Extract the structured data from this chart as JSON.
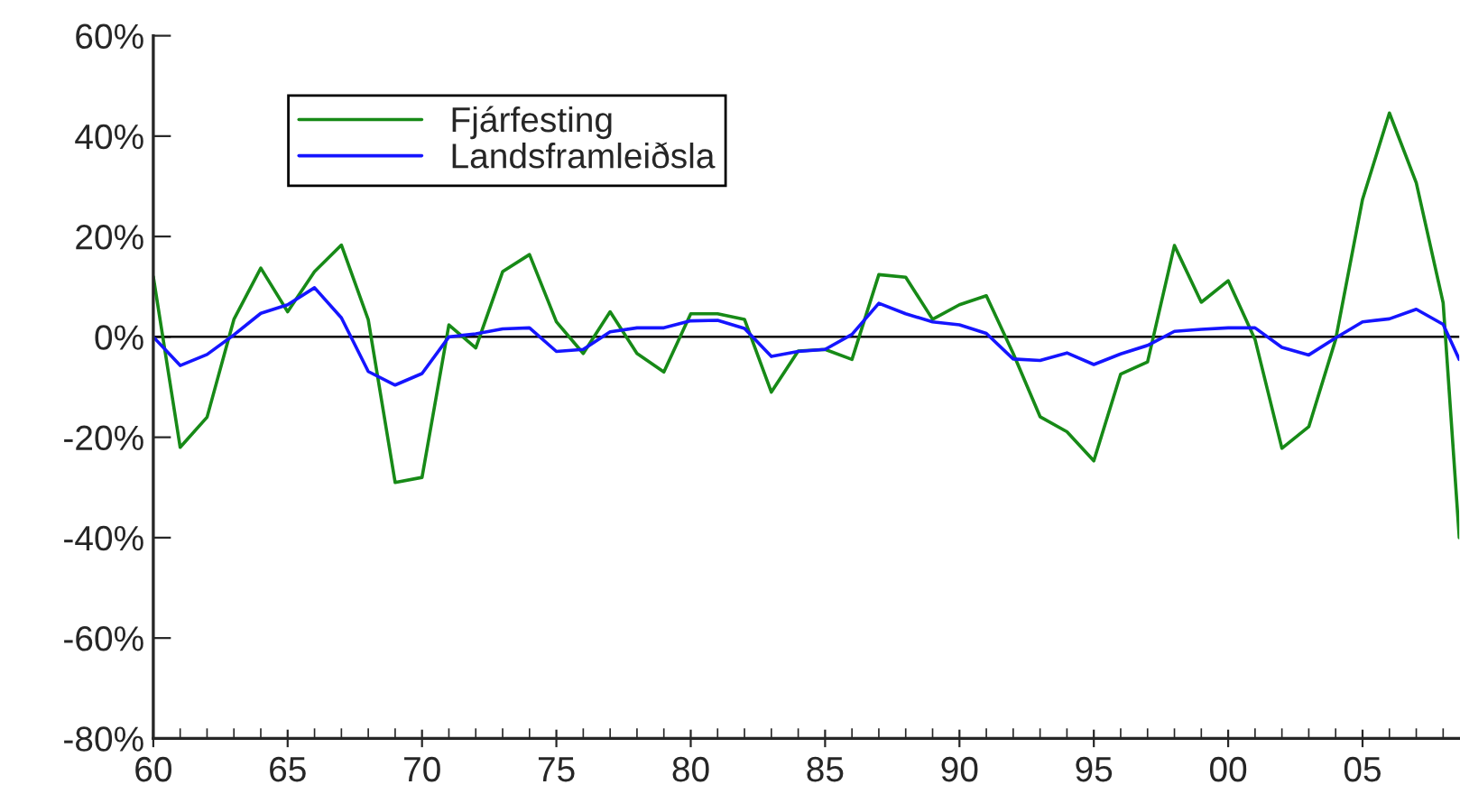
{
  "chart_data": {
    "type": "line",
    "x": [
      1960,
      1961,
      1962,
      1963,
      1964,
      1965,
      1966,
      1967,
      1968,
      1969,
      1970,
      1971,
      1972,
      1973,
      1974,
      1975,
      1976,
      1977,
      1978,
      1979,
      1980,
      1981,
      1982,
      1983,
      1984,
      1985,
      1986,
      1987,
      1988,
      1989,
      1990,
      1991,
      1992,
      1993,
      1994,
      1995,
      1996,
      1997,
      1998,
      1999,
      2000,
      2001,
      2002,
      2003,
      2004,
      2005,
      2006,
      2007,
      2008,
      2008.6
    ],
    "series": [
      {
        "name": "Fjárfesting",
        "color": "#178a17",
        "values": [
          12,
          -22,
          -16,
          3.5,
          13.7,
          5,
          13,
          18.3,
          3.4,
          -29,
          -28,
          2.4,
          -2.2,
          13,
          16.4,
          3,
          -3.3,
          5,
          -3.3,
          -7,
          4.6,
          4.6,
          3.5,
          -11,
          -2.8,
          -2.5,
          -4.5,
          12.4,
          11.9,
          3.5,
          6.4,
          8.2,
          -3.3,
          -15.9,
          -18.9,
          -24.7,
          -7.4,
          -5,
          18.2,
          6.9,
          11.2,
          -0.5,
          -22.2,
          -17.9,
          -0.5,
          27.4,
          44.6,
          30.7,
          6.8,
          -40
        ]
      },
      {
        "name": "Landsframleiðsla",
        "color": "#1515ff",
        "values": [
          0,
          -5.7,
          -3.5,
          0.4,
          4.7,
          6.4,
          9.8,
          3.8,
          -6.9,
          -9.6,
          -7.3,
          0,
          0.6,
          1.6,
          1.8,
          -2.9,
          -2.5,
          1,
          1.8,
          1.8,
          3.2,
          3.3,
          1.7,
          -3.9,
          -2.9,
          -2.5,
          0.5,
          6.7,
          4.6,
          3,
          2.4,
          0.7,
          -4.4,
          -4.7,
          -3.2,
          -5.5,
          -3.4,
          -1.7,
          1.1,
          1.5,
          1.8,
          1.8,
          -2.1,
          -3.6,
          -0.2,
          3,
          3.6,
          5.5,
          2.5,
          -4.5
        ]
      }
    ],
    "xlim": [
      1960,
      2008.6
    ],
    "xticks": [
      {
        "value": 1960,
        "label": "60"
      },
      {
        "value": 1965,
        "label": "65"
      },
      {
        "value": 1970,
        "label": "70"
      },
      {
        "value": 1975,
        "label": "75"
      },
      {
        "value": 1980,
        "label": "80"
      },
      {
        "value": 1985,
        "label": "85"
      },
      {
        "value": 1990,
        "label": "90"
      },
      {
        "value": 1995,
        "label": "95"
      },
      {
        "value": 2000,
        "label": "00"
      },
      {
        "value": 2005,
        "label": "05"
      }
    ],
    "ylim": [
      -80,
      60
    ],
    "yticks": [
      {
        "value": -80,
        "label": "-80%"
      },
      {
        "value": -60,
        "label": "-60%"
      },
      {
        "value": -40,
        "label": "-40%"
      },
      {
        "value": -20,
        "label": "-20%"
      },
      {
        "value": 0,
        "label": "0%"
      },
      {
        "value": 20,
        "label": "20%"
      },
      {
        "value": 40,
        "label": "40%"
      },
      {
        "value": 60,
        "label": "60%"
      }
    ],
    "ref_lines": [
      {
        "axis": "y",
        "value": 0,
        "color": "#000000",
        "line_style": "solid"
      }
    ],
    "legend": "top left",
    "grid": false,
    "marker": "none",
    "line_style": "solid"
  }
}
